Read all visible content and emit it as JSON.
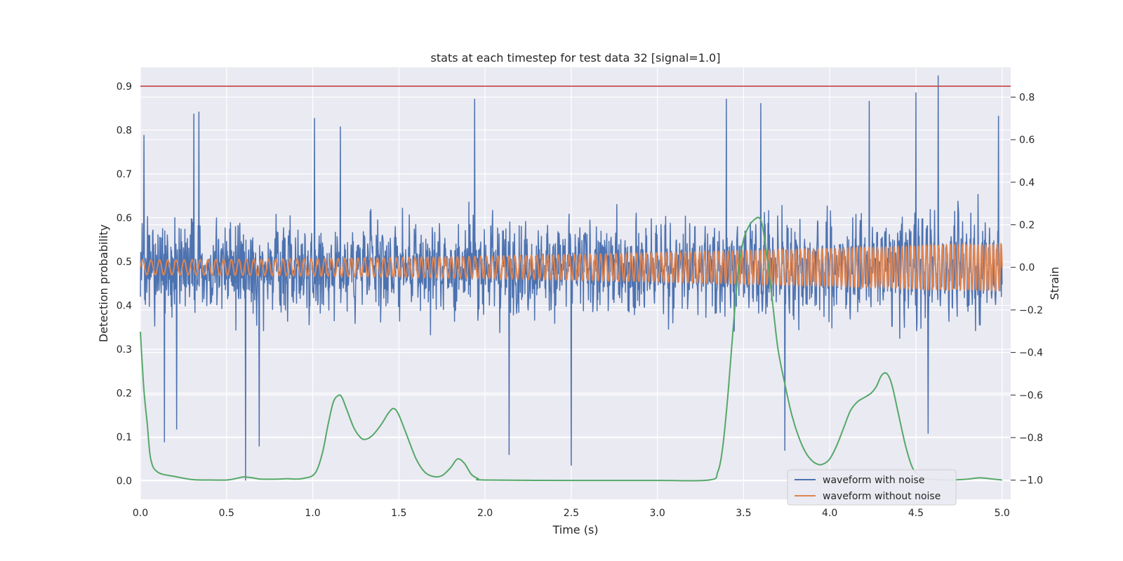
{
  "chart_data": {
    "type": "line",
    "title": "stats at each timestep for test data 32 [signal=1.0]",
    "xlabel": "Time (s)",
    "ylabel": "Detection probability",
    "ylabel_right": "Strain",
    "xlim": [
      0.0,
      5.05
    ],
    "ylim": [
      -0.042,
      0.943
    ],
    "ylim_right": [
      -1.09,
      0.94
    ],
    "xticks": [
      "0.0",
      "0.5",
      "1.0",
      "1.5",
      "2.0",
      "2.5",
      "3.0",
      "3.5",
      "4.0",
      "4.5",
      "5.0"
    ],
    "yticks": [
      "0.0",
      "0.1",
      "0.2",
      "0.3",
      "0.4",
      "0.5",
      "0.6",
      "0.7",
      "0.8",
      "0.9"
    ],
    "yticks_right": [
      "−1.0",
      "−0.8",
      "−0.6",
      "−0.4",
      "−0.2",
      "0.0",
      "0.2",
      "0.4",
      "0.6",
      "0.8"
    ],
    "grid": true,
    "legend_position": "lower-right",
    "threshold": {
      "value": 0.9,
      "color": "#c44e52"
    },
    "colors": {
      "noisy": "#4c72b0",
      "clean": "#dd8452",
      "probability": "#55a868",
      "background": "#eaeaf2",
      "grid": "#ffffff"
    },
    "series": [
      {
        "name": "waveform with noise",
        "axis": "right",
        "note_visible": "dense noisy strain roughly within [-1.0, 0.9]",
        "amplitude_std": 0.19,
        "samples": 2400,
        "peaks": [
          {
            "x": 0.02,
            "y": 0.62
          },
          {
            "x": 0.31,
            "y": 0.72
          },
          {
            "x": 0.34,
            "y": 0.73
          },
          {
            "x": 1.01,
            "y": 0.7
          },
          {
            "x": 1.16,
            "y": 0.66
          },
          {
            "x": 1.94,
            "y": 0.79
          },
          {
            "x": 3.4,
            "y": 0.79
          },
          {
            "x": 3.6,
            "y": 0.77
          },
          {
            "x": 4.23,
            "y": 0.78
          },
          {
            "x": 4.5,
            "y": 0.82
          },
          {
            "x": 4.63,
            "y": 0.9
          },
          {
            "x": 4.98,
            "y": 0.71
          }
        ],
        "troughs": [
          {
            "x": 0.14,
            "y": -0.82
          },
          {
            "x": 0.21,
            "y": -0.76
          },
          {
            "x": 0.61,
            "y": -1.0
          },
          {
            "x": 0.69,
            "y": -0.84
          },
          {
            "x": 2.14,
            "y": -0.88
          },
          {
            "x": 2.5,
            "y": -0.93
          },
          {
            "x": 3.74,
            "y": -0.86
          },
          {
            "x": 4.57,
            "y": -0.78
          }
        ]
      },
      {
        "name": "waveform without noise",
        "axis": "right",
        "chirp": {
          "f_start": 20,
          "f_end": 45,
          "a_start": 0.035,
          "a_end": 0.11
        }
      },
      {
        "name": "",
        "axis": "left",
        "x": [
          0.0,
          0.02,
          0.04,
          0.06,
          0.1,
          0.2,
          0.3,
          0.4,
          0.5,
          0.55,
          0.6,
          0.65,
          0.7,
          0.8,
          0.85,
          0.9,
          0.95,
          1.0,
          1.03,
          1.06,
          1.09,
          1.12,
          1.15,
          1.17,
          1.2,
          1.24,
          1.28,
          1.31,
          1.35,
          1.4,
          1.44,
          1.47,
          1.5,
          1.55,
          1.6,
          1.65,
          1.7,
          1.75,
          1.8,
          1.84,
          1.88,
          1.92,
          1.96,
          2.0,
          2.5,
          3.0,
          3.3,
          3.35,
          3.38,
          3.41,
          3.44,
          3.47,
          3.5,
          3.53,
          3.56,
          3.59,
          3.61,
          3.64,
          3.67,
          3.7,
          3.74,
          3.78,
          3.82,
          3.86,
          3.9,
          3.94,
          3.97,
          4.0,
          4.04,
          4.08,
          4.12,
          4.16,
          4.2,
          4.24,
          4.27,
          4.3,
          4.33,
          4.36,
          4.4,
          4.44,
          4.48,
          4.52,
          4.56,
          4.6,
          4.7,
          4.8,
          4.87,
          4.95,
          5.0
        ],
        "values": [
          0.34,
          0.21,
          0.13,
          0.05,
          0.02,
          0.01,
          0.003,
          0.002,
          0.002,
          0.005,
          0.009,
          0.007,
          0.004,
          0.004,
          0.005,
          0.004,
          0.006,
          0.012,
          0.03,
          0.07,
          0.13,
          0.18,
          0.195,
          0.19,
          0.16,
          0.12,
          0.098,
          0.095,
          0.105,
          0.13,
          0.155,
          0.165,
          0.15,
          0.1,
          0.05,
          0.02,
          0.01,
          0.012,
          0.03,
          0.05,
          0.04,
          0.015,
          0.005,
          0.002,
          0.001,
          0.001,
          0.002,
          0.02,
          0.08,
          0.2,
          0.35,
          0.48,
          0.55,
          0.58,
          0.595,
          0.6,
          0.58,
          0.5,
          0.4,
          0.3,
          0.22,
          0.15,
          0.1,
          0.065,
          0.045,
          0.037,
          0.04,
          0.05,
          0.08,
          0.12,
          0.16,
          0.18,
          0.19,
          0.2,
          0.215,
          0.24,
          0.245,
          0.22,
          0.15,
          0.08,
          0.03,
          0.012,
          0.005,
          0.003,
          0.002,
          0.004,
          0.007,
          0.004,
          0.002
        ]
      }
    ]
  }
}
